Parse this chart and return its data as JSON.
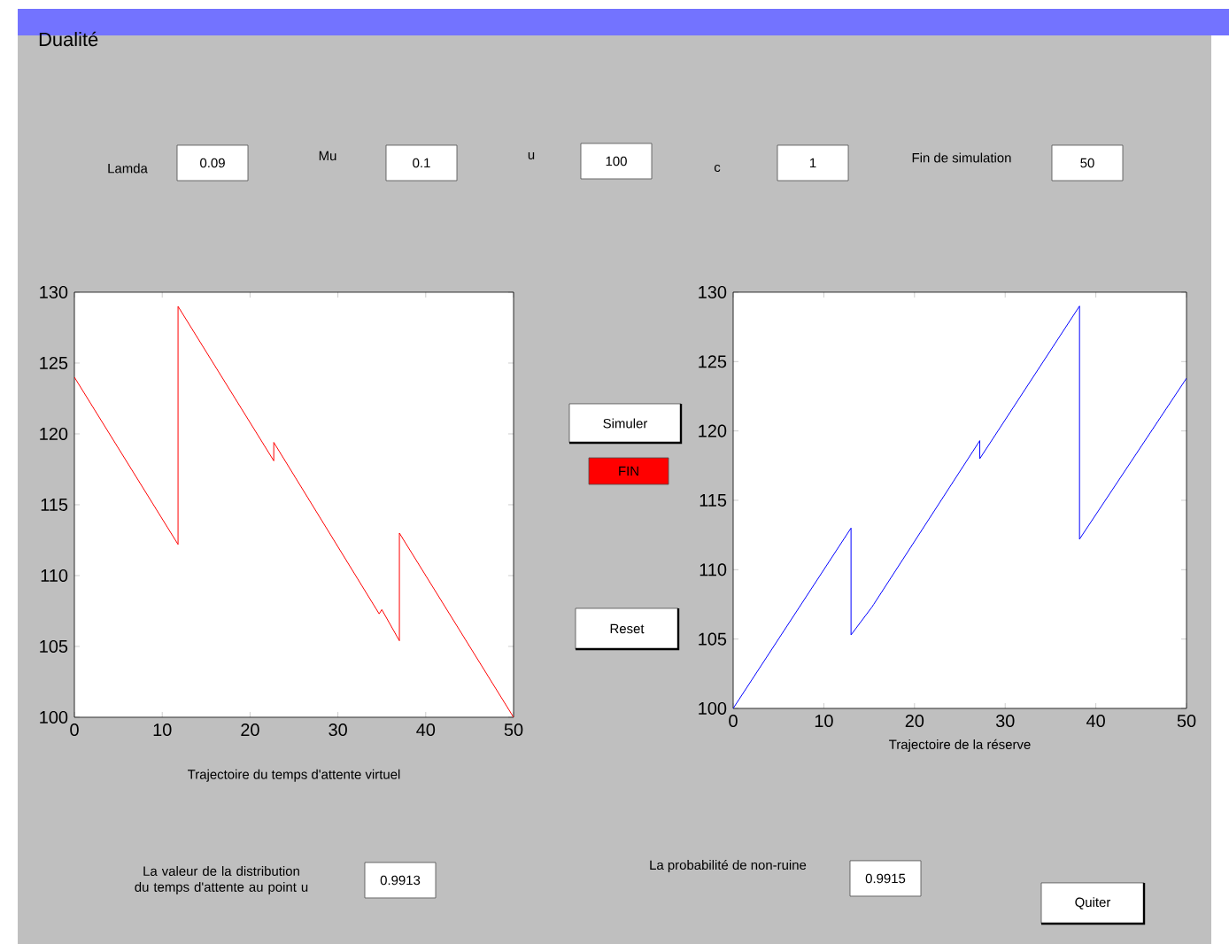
{
  "chart_data": [
    {
      "type": "other",
      "title": "Dualité",
      "annotations": [
        "Lamda",
        "0.09",
        "Mu",
        "0.1",
        "u",
        "100",
        "c",
        "1",
        "Fin de simulation",
        "50",
        "Simuler",
        "FIN",
        "Reset",
        "La valeur de la distribution du temps d'attente au point u",
        "0.9913",
        "La probabilité de non-ruine",
        "0.9915",
        "Quiter"
      ]
    },
    {
      "type": "line",
      "xlabel": "Trajectoire du temps d'attente virtuel",
      "x": [
        0,
        11.8,
        11.8,
        22.7,
        22.7,
        34.7,
        35,
        37,
        37,
        50
      ],
      "values": [
        124,
        112.2,
        129,
        118.1,
        119.4,
        107.3,
        107.6,
        105.4,
        113,
        100
      ],
      "color": "#ff0000",
      "xlim": [
        0,
        50
      ],
      "ylim": [
        100,
        130
      ],
      "xticks": [
        0,
        10,
        20,
        30,
        40,
        50
      ],
      "yticks": [
        100,
        105,
        110,
        115,
        120,
        125,
        130
      ]
    },
    {
      "type": "line",
      "xlabel": "Trajectoire de la réserve",
      "x": [
        0,
        13,
        13,
        15.3,
        15.5,
        27.2,
        27.2,
        38.2,
        38.2,
        50
      ],
      "values": [
        100,
        113,
        105.3,
        107.3,
        107.5,
        119.3,
        118,
        129,
        112.2,
        123.8
      ],
      "color": "#0000ff",
      "xlim": [
        0,
        50
      ],
      "ylim": [
        100,
        130
      ],
      "xticks": [
        0,
        10,
        20,
        30,
        40,
        50
      ],
      "yticks": [
        100,
        105,
        110,
        115,
        120,
        125,
        130
      ]
    }
  ]
}
